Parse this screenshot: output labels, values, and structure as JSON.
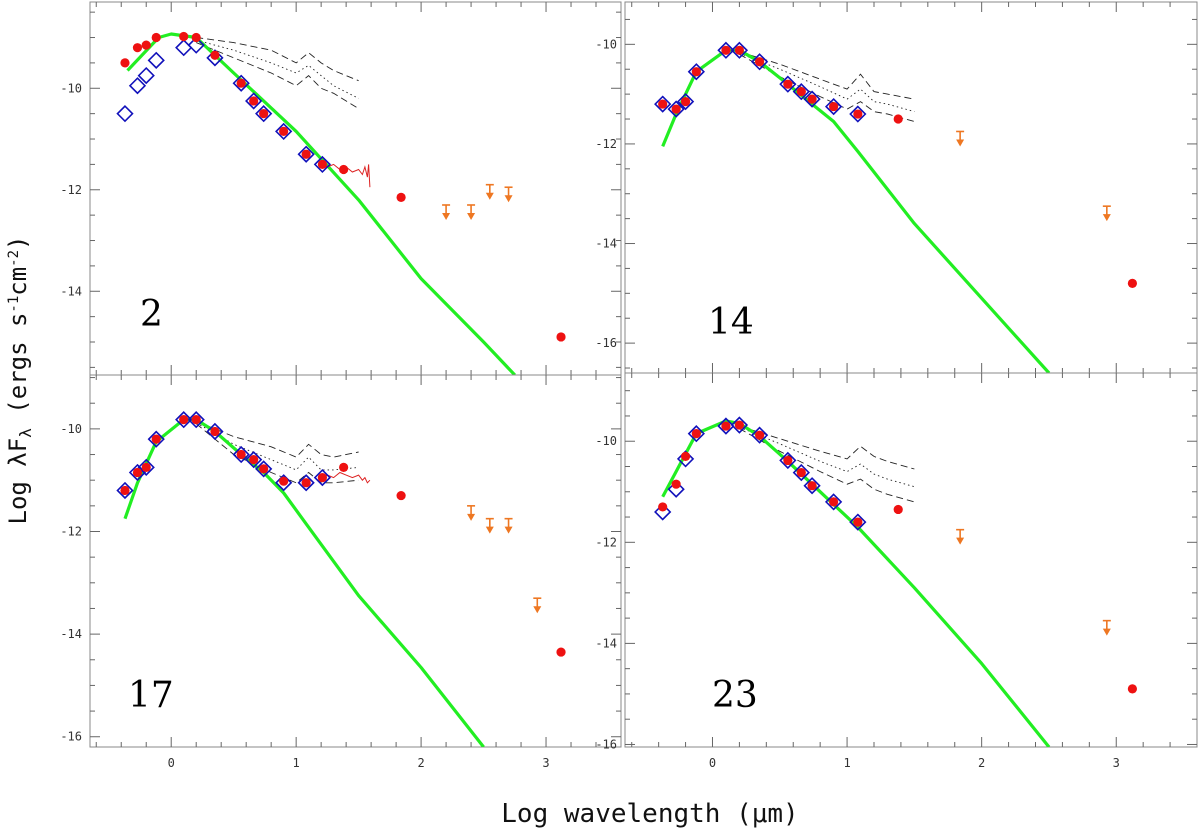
{
  "axes": {
    "xlabel": "Log wavelength (μm)",
    "ylabel_main": "Log λF",
    "ylabel_sub": "λ",
    "ylabel_units": " (ergs s",
    "ylabel_exp1": "-1",
    "ylabel_cm": "cm",
    "ylabel_exp2": "-2",
    "ylabel_close": ")"
  },
  "colors": {
    "model": "#22ee22",
    "red_points": "#ee1111",
    "blue_diamonds": "#1111bb",
    "upper_limits": "#ee7722",
    "spectrum": "#dd2222",
    "envelope": "#222222"
  },
  "chart_data": [
    {
      "panel": "2",
      "type": "scatter",
      "xlim": [
        -0.65,
        3.6
      ],
      "ylim": [
        -15.65,
        -8.3
      ],
      "yticks": [
        -10,
        -12,
        -14
      ],
      "show_xticklabels": false,
      "model_curve": [
        [
          -0.35,
          -9.65
        ],
        [
          -0.1,
          -9.0
        ],
        [
          0.0,
          -8.93
        ],
        [
          0.2,
          -9.0
        ],
        [
          0.5,
          -9.7
        ],
        [
          1.0,
          -10.85
        ],
        [
          1.5,
          -12.2
        ],
        [
          2.0,
          -13.75
        ],
        [
          2.5,
          -15.0
        ],
        [
          2.75,
          -15.65
        ]
      ],
      "red_points": [
        [
          -0.37,
          -9.5
        ],
        [
          -0.27,
          -9.2
        ],
        [
          -0.2,
          -9.15
        ],
        [
          -0.12,
          -9.0
        ],
        [
          0.1,
          -8.98
        ],
        [
          0.2,
          -9.0
        ],
        [
          0.35,
          -9.35
        ],
        [
          0.56,
          -9.9
        ],
        [
          0.66,
          -10.25
        ],
        [
          0.74,
          -10.5
        ],
        [
          0.9,
          -10.85
        ],
        [
          1.08,
          -11.3
        ],
        [
          1.21,
          -11.5
        ],
        [
          1.38,
          -11.6
        ],
        [
          1.84,
          -12.15
        ],
        [
          3.12,
          -14.9
        ]
      ],
      "diamonds": [
        [
          -0.37,
          -10.5
        ],
        [
          -0.27,
          -9.95
        ],
        [
          -0.2,
          -9.75
        ],
        [
          -0.12,
          -9.45
        ],
        [
          0.1,
          -9.2
        ],
        [
          0.2,
          -9.15
        ],
        [
          0.35,
          -9.4
        ],
        [
          0.56,
          -9.9
        ],
        [
          0.66,
          -10.25
        ],
        [
          0.74,
          -10.5
        ],
        [
          0.9,
          -10.85
        ],
        [
          1.08,
          -11.3
        ],
        [
          1.21,
          -11.5
        ]
      ],
      "upper_limits": [
        [
          2.2,
          -12.3
        ],
        [
          2.4,
          -12.3
        ],
        [
          2.55,
          -11.9
        ],
        [
          2.7,
          -11.95
        ]
      ],
      "spectrum": [
        [
          1.2,
          -11.5
        ],
        [
          1.25,
          -11.55
        ],
        [
          1.3,
          -11.5
        ],
        [
          1.35,
          -11.6
        ],
        [
          1.4,
          -11.55
        ],
        [
          1.45,
          -11.65
        ],
        [
          1.5,
          -11.6
        ],
        [
          1.53,
          -11.7
        ],
        [
          1.55,
          -11.55
        ],
        [
          1.57,
          -11.75
        ],
        [
          1.58,
          -11.5
        ],
        [
          1.59,
          -11.95
        ]
      ],
      "envelope_upper": [
        [
          0.2,
          -9.0
        ],
        [
          0.5,
          -9.1
        ],
        [
          0.8,
          -9.25
        ],
        [
          1.0,
          -9.5
        ],
        [
          1.1,
          -9.3
        ],
        [
          1.2,
          -9.5
        ],
        [
          1.3,
          -9.65
        ],
        [
          1.5,
          -9.85
        ]
      ],
      "envelope_lower": [
        [
          0.2,
          -9.1
        ],
        [
          0.5,
          -9.4
        ],
        [
          0.8,
          -9.7
        ],
        [
          1.0,
          -9.95
        ],
        [
          1.1,
          -9.75
        ],
        [
          1.2,
          -10.0
        ],
        [
          1.3,
          -10.1
        ],
        [
          1.5,
          -10.4
        ]
      ],
      "envelope_middle": [
        [
          0.2,
          -9.05
        ],
        [
          0.5,
          -9.25
        ],
        [
          0.8,
          -9.5
        ],
        [
          1.0,
          -9.7
        ],
        [
          1.1,
          -9.55
        ],
        [
          1.2,
          -9.75
        ],
        [
          1.3,
          -9.95
        ],
        [
          1.5,
          -10.2
        ]
      ]
    },
    {
      "panel": "14",
      "type": "scatter",
      "xlim": [
        -0.65,
        3.6
      ],
      "ylim": [
        -16.6,
        -9.15
      ],
      "yticks": [
        -10,
        -12,
        -14,
        -16
      ],
      "show_xticklabels": false,
      "model_curve": [
        [
          -0.37,
          -12.05
        ],
        [
          -0.27,
          -11.4
        ],
        [
          -0.12,
          -10.55
        ],
        [
          0.1,
          -10.12
        ],
        [
          0.2,
          -10.12
        ],
        [
          0.35,
          -10.35
        ],
        [
          0.56,
          -10.8
        ],
        [
          0.74,
          -11.2
        ],
        [
          0.9,
          -11.55
        ],
        [
          1.08,
          -12.15
        ],
        [
          1.5,
          -13.6
        ],
        [
          2.0,
          -15.1
        ],
        [
          2.5,
          -16.6
        ]
      ],
      "red_points": [
        [
          -0.37,
          -11.2
        ],
        [
          -0.27,
          -11.3
        ],
        [
          -0.2,
          -11.15
        ],
        [
          -0.12,
          -10.55
        ],
        [
          0.1,
          -10.12
        ],
        [
          0.2,
          -10.12
        ],
        [
          0.35,
          -10.35
        ],
        [
          0.56,
          -10.8
        ],
        [
          0.66,
          -10.95
        ],
        [
          0.74,
          -11.1
        ],
        [
          0.9,
          -11.25
        ],
        [
          1.08,
          -11.4
        ],
        [
          1.38,
          -11.5
        ],
        [
          3.12,
          -14.8
        ]
      ],
      "diamonds": [
        [
          -0.37,
          -11.2
        ],
        [
          -0.27,
          -11.3
        ],
        [
          -0.2,
          -11.15
        ],
        [
          -0.12,
          -10.55
        ],
        [
          0.1,
          -10.12
        ],
        [
          0.2,
          -10.12
        ],
        [
          0.35,
          -10.35
        ],
        [
          0.56,
          -10.8
        ],
        [
          0.66,
          -10.95
        ],
        [
          0.74,
          -11.1
        ],
        [
          0.9,
          -11.25
        ],
        [
          1.08,
          -11.4
        ]
      ],
      "upper_limits": [
        [
          1.84,
          -11.75
        ],
        [
          2.93,
          -13.25
        ]
      ],
      "spectrum": [],
      "envelope_upper": [
        [
          0.2,
          -10.15
        ],
        [
          0.5,
          -10.4
        ],
        [
          0.8,
          -10.7
        ],
        [
          1.0,
          -10.9
        ],
        [
          1.1,
          -10.6
        ],
        [
          1.2,
          -10.95
        ],
        [
          1.3,
          -11.0
        ],
        [
          1.5,
          -11.1
        ]
      ],
      "envelope_lower": [
        [
          0.2,
          -10.2
        ],
        [
          0.5,
          -10.65
        ],
        [
          0.8,
          -11.05
        ],
        [
          1.0,
          -11.3
        ],
        [
          1.1,
          -11.15
        ],
        [
          1.2,
          -11.35
        ],
        [
          1.3,
          -11.4
        ],
        [
          1.5,
          -11.55
        ]
      ],
      "envelope_middle": [
        [
          0.2,
          -10.18
        ],
        [
          0.5,
          -10.5
        ],
        [
          0.8,
          -10.85
        ],
        [
          1.0,
          -11.1
        ],
        [
          1.1,
          -10.9
        ],
        [
          1.2,
          -11.15
        ],
        [
          1.3,
          -11.2
        ],
        [
          1.5,
          -11.35
        ]
      ]
    },
    {
      "panel": "17",
      "type": "scatter",
      "xlim": [
        -0.65,
        3.6
      ],
      "ylim": [
        -16.2,
        -8.95
      ],
      "yticks": [
        -10,
        -12,
        -14,
        -16
      ],
      "show_xticklabels": true,
      "xticks": [
        0,
        1,
        2,
        3
      ],
      "model_curve": [
        [
          -0.37,
          -11.75
        ],
        [
          -0.27,
          -11.05
        ],
        [
          -0.12,
          -10.25
        ],
        [
          0.1,
          -9.82
        ],
        [
          0.2,
          -9.82
        ],
        [
          0.35,
          -10.05
        ],
        [
          0.56,
          -10.5
        ],
        [
          0.74,
          -10.85
        ],
        [
          0.9,
          -11.25
        ],
        [
          1.08,
          -11.85
        ],
        [
          1.5,
          -13.25
        ],
        [
          2.0,
          -14.65
        ],
        [
          2.5,
          -16.2
        ]
      ],
      "red_points": [
        [
          -0.37,
          -11.2
        ],
        [
          -0.27,
          -10.85
        ],
        [
          -0.2,
          -10.75
        ],
        [
          -0.12,
          -10.2
        ],
        [
          0.1,
          -9.82
        ],
        [
          0.2,
          -9.82
        ],
        [
          0.35,
          -10.05
        ],
        [
          0.56,
          -10.5
        ],
        [
          0.66,
          -10.6
        ],
        [
          0.74,
          -10.78
        ],
        [
          0.9,
          -11.02
        ],
        [
          1.08,
          -11.05
        ],
        [
          1.21,
          -10.95
        ],
        [
          1.38,
          -10.75
        ],
        [
          1.84,
          -11.3
        ],
        [
          3.12,
          -14.35
        ]
      ],
      "diamonds": [
        [
          -0.37,
          -11.2
        ],
        [
          -0.27,
          -10.85
        ],
        [
          -0.2,
          -10.75
        ],
        [
          -0.12,
          -10.2
        ],
        [
          0.1,
          -9.82
        ],
        [
          0.2,
          -9.82
        ],
        [
          0.35,
          -10.05
        ],
        [
          0.56,
          -10.5
        ],
        [
          0.66,
          -10.6
        ],
        [
          0.74,
          -10.78
        ],
        [
          0.9,
          -11.05
        ],
        [
          1.08,
          -11.05
        ],
        [
          1.21,
          -10.95
        ]
      ],
      "upper_limits": [
        [
          2.4,
          -11.5
        ],
        [
          2.55,
          -11.75
        ],
        [
          2.7,
          -11.75
        ],
        [
          2.93,
          -13.3
        ]
      ],
      "spectrum": [
        [
          1.2,
          -10.95
        ],
        [
          1.25,
          -10.9
        ],
        [
          1.3,
          -10.95
        ],
        [
          1.35,
          -10.85
        ],
        [
          1.4,
          -10.9
        ],
        [
          1.45,
          -10.95
        ],
        [
          1.5,
          -10.9
        ],
        [
          1.53,
          -11.0
        ],
        [
          1.55,
          -10.95
        ],
        [
          1.57,
          -11.05
        ],
        [
          1.59,
          -11.0
        ]
      ],
      "envelope_upper": [
        [
          0.2,
          -9.85
        ],
        [
          0.5,
          -10.15
        ],
        [
          0.8,
          -10.35
        ],
        [
          1.0,
          -10.55
        ],
        [
          1.1,
          -10.3
        ],
        [
          1.2,
          -10.5
        ],
        [
          1.3,
          -10.55
        ],
        [
          1.5,
          -10.45
        ]
      ],
      "envelope_lower": [
        [
          0.2,
          -9.9
        ],
        [
          0.5,
          -10.5
        ],
        [
          0.8,
          -10.85
        ],
        [
          1.0,
          -11.05
        ],
        [
          1.1,
          -10.85
        ],
        [
          1.2,
          -11.05
        ],
        [
          1.3,
          -11.05
        ],
        [
          1.5,
          -11.0
        ]
      ],
      "envelope_middle": [
        [
          0.2,
          -9.88
        ],
        [
          0.5,
          -10.3
        ],
        [
          0.8,
          -10.6
        ],
        [
          1.0,
          -10.8
        ],
        [
          1.1,
          -10.55
        ],
        [
          1.2,
          -10.8
        ],
        [
          1.3,
          -10.8
        ],
        [
          1.5,
          -10.75
        ]
      ]
    },
    {
      "panel": "23",
      "type": "scatter",
      "xlim": [
        -0.65,
        3.6
      ],
      "ylim": [
        -16.05,
        -8.65
      ],
      "yticks": [
        -10,
        -12,
        -14,
        -16
      ],
      "show_xticklabels": true,
      "xticks": [
        0,
        1,
        2,
        3
      ],
      "model_curve": [
        [
          -0.37,
          -11.1
        ],
        [
          -0.27,
          -10.6
        ],
        [
          -0.12,
          -9.85
        ],
        [
          0.1,
          -9.6
        ],
        [
          0.2,
          -9.65
        ],
        [
          0.35,
          -9.9
        ],
        [
          0.56,
          -10.4
        ],
        [
          0.74,
          -10.85
        ],
        [
          0.9,
          -11.25
        ],
        [
          1.08,
          -11.7
        ],
        [
          1.5,
          -12.9
        ],
        [
          2.0,
          -14.4
        ],
        [
          2.5,
          -16.05
        ]
      ],
      "red_points": [
        [
          -0.37,
          -11.3
        ],
        [
          -0.27,
          -10.85
        ],
        [
          -0.2,
          -10.3
        ],
        [
          -0.12,
          -9.85
        ],
        [
          0.1,
          -9.7
        ],
        [
          0.2,
          -9.68
        ],
        [
          0.35,
          -9.88
        ],
        [
          0.56,
          -10.38
        ],
        [
          0.66,
          -10.62
        ],
        [
          0.74,
          -10.88
        ],
        [
          0.9,
          -11.2
        ],
        [
          1.08,
          -11.6
        ],
        [
          1.38,
          -11.35
        ],
        [
          3.12,
          -14.9
        ]
      ],
      "diamonds": [
        [
          -0.37,
          -11.4
        ],
        [
          -0.27,
          -10.95
        ],
        [
          -0.2,
          -10.35
        ],
        [
          -0.12,
          -9.85
        ],
        [
          0.1,
          -9.7
        ],
        [
          0.2,
          -9.68
        ],
        [
          0.35,
          -9.88
        ],
        [
          0.56,
          -10.38
        ],
        [
          0.66,
          -10.62
        ],
        [
          0.74,
          -10.88
        ],
        [
          0.9,
          -11.2
        ],
        [
          1.08,
          -11.6
        ]
      ],
      "upper_limits": [
        [
          1.84,
          -11.75
        ],
        [
          2.93,
          -13.55
        ]
      ],
      "spectrum": [],
      "envelope_upper": [
        [
          0.2,
          -9.7
        ],
        [
          0.5,
          -9.95
        ],
        [
          0.8,
          -10.2
        ],
        [
          1.0,
          -10.35
        ],
        [
          1.1,
          -10.1
        ],
        [
          1.2,
          -10.3
        ],
        [
          1.3,
          -10.4
        ],
        [
          1.5,
          -10.55
        ]
      ],
      "envelope_lower": [
        [
          0.2,
          -9.75
        ],
        [
          0.5,
          -10.2
        ],
        [
          0.8,
          -10.6
        ],
        [
          1.0,
          -10.85
        ],
        [
          1.1,
          -10.75
        ],
        [
          1.2,
          -10.95
        ],
        [
          1.3,
          -11.05
        ],
        [
          1.5,
          -11.2
        ]
      ],
      "envelope_middle": [
        [
          0.2,
          -9.72
        ],
        [
          0.5,
          -10.05
        ],
        [
          0.8,
          -10.4
        ],
        [
          1.0,
          -10.6
        ],
        [
          1.1,
          -10.45
        ],
        [
          1.2,
          -10.65
        ],
        [
          1.3,
          -10.75
        ],
        [
          1.5,
          -10.9
        ]
      ]
    }
  ]
}
